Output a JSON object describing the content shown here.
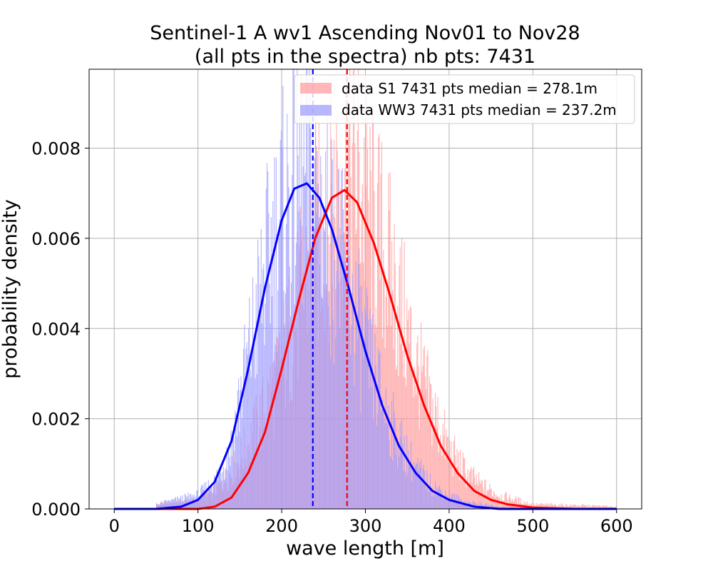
{
  "chart_data": {
    "type": "bar",
    "title": [
      "Sentinel-1 A wv1 Ascending Nov01 to Nov28",
      "(all pts in the spectra) nb pts: 7431"
    ],
    "xlabel": "wave length [m]",
    "ylabel": "probability density",
    "xlim": [
      -30,
      630
    ],
    "ylim": [
      0,
      0.00975
    ],
    "xticks": [
      0,
      100,
      200,
      300,
      400,
      500,
      600
    ],
    "xtick_labels": [
      "0",
      "100",
      "200",
      "300",
      "400",
      "500",
      "600"
    ],
    "yticks": [
      0,
      0.002,
      0.004,
      0.006,
      0.008
    ],
    "ytick_labels": [
      "0.000",
      "0.002",
      "0.004",
      "0.006",
      "0.008"
    ],
    "grid": true,
    "legend_position": "top-right",
    "series": [
      {
        "name": "data S1 7431 pts median = 278.1m",
        "kind": "histogram",
        "color": "#ff9999",
        "bin_width": 1,
        "median": 278.1,
        "fit_mean": 272,
        "fit_peak": 0.00707,
        "density_profile_x": [
          50,
          100,
          120,
          140,
          160,
          180,
          200,
          220,
          240,
          260,
          270,
          280,
          290,
          300,
          320,
          340,
          360,
          380,
          400,
          420,
          440,
          460,
          480,
          500,
          550,
          600
        ],
        "density_profile_y": [
          0.0001,
          0.0002,
          0.0004,
          0.0008,
          0.0014,
          0.0022,
          0.0032,
          0.0045,
          0.0058,
          0.0068,
          0.0075,
          0.0078,
          0.0074,
          0.0068,
          0.0058,
          0.0046,
          0.0032,
          0.0022,
          0.0013,
          0.0008,
          0.0005,
          0.0003,
          0.0002,
          0.0001,
          8e-05,
          5e-05
        ]
      },
      {
        "name": "data WW3 7431 pts median = 237.2m",
        "kind": "histogram",
        "color": "#9999ff",
        "bin_width": 1,
        "median": 237.2,
        "fit_mean": 230,
        "fit_peak": 0.00722,
        "density_profile_x": [
          50,
          100,
          120,
          140,
          150,
          160,
          180,
          200,
          220,
          240,
          260,
          280,
          300,
          320,
          340,
          360,
          380,
          400,
          420,
          440,
          460,
          480,
          500
        ],
        "density_profile_y": [
          0.0001,
          0.0003,
          0.0006,
          0.0014,
          0.0025,
          0.0033,
          0.0052,
          0.0065,
          0.0072,
          0.007,
          0.006,
          0.0048,
          0.0035,
          0.0024,
          0.0015,
          0.0009,
          0.0005,
          0.0003,
          0.00015,
          0.0001,
          5e-05,
          3e-05,
          2e-05
        ]
      }
    ],
    "fits": [
      {
        "color": "#ff0000",
        "x": [
          0,
          100,
          120,
          140,
          160,
          180,
          200,
          220,
          240,
          260,
          275,
          290,
          310,
          330,
          350,
          370,
          390,
          410,
          430,
          450,
          470,
          500,
          550,
          600
        ],
        "y": [
          0.0,
          0.0,
          5e-05,
          0.00025,
          0.0008,
          0.0017,
          0.0031,
          0.0046,
          0.006,
          0.0069,
          0.00707,
          0.0068,
          0.0059,
          0.0047,
          0.0034,
          0.0023,
          0.0014,
          0.0008,
          0.0004,
          0.0002,
          0.0001,
          3e-05,
          0.0,
          0.0
        ]
      },
      {
        "color": "#0000ff",
        "x": [
          0,
          50,
          80,
          100,
          120,
          140,
          160,
          180,
          200,
          215,
          230,
          245,
          260,
          280,
          300,
          320,
          340,
          360,
          380,
          400,
          430,
          460,
          500,
          600
        ],
        "y": [
          0.0,
          0.0,
          5e-05,
          0.0002,
          0.0006,
          0.0015,
          0.0031,
          0.0049,
          0.0064,
          0.0071,
          0.00722,
          0.0069,
          0.0062,
          0.0049,
          0.0035,
          0.0023,
          0.0014,
          0.0008,
          0.0004,
          0.0002,
          5e-05,
          0.0,
          0.0,
          0.0
        ]
      }
    ],
    "medians": [
      {
        "value": 278.1,
        "color": "#ff0000"
      },
      {
        "value": 237.2,
        "color": "#0000ff"
      }
    ]
  }
}
